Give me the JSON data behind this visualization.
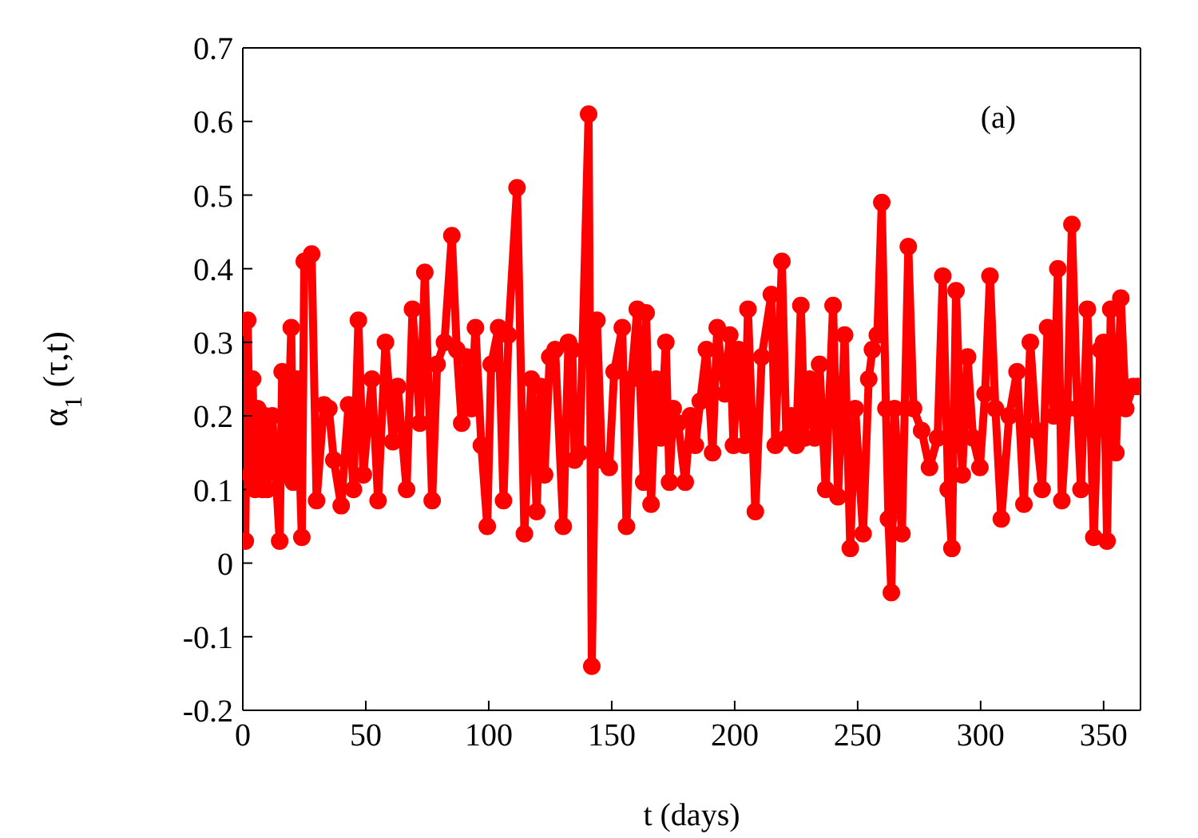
{
  "chart_data": {
    "type": "line",
    "xlabel": "t (days)",
    "ylabel": "α$_{1}$ (τ,t)",
    "annotations": [
      "(a)"
    ],
    "xlim": [
      0,
      365
    ],
    "ylim": [
      -0.2,
      0.7
    ],
    "xticks": [
      0,
      50,
      100,
      150,
      200,
      250,
      300,
      350
    ],
    "yticks": [
      -0.2,
      -0.1,
      0,
      0.1,
      0.2,
      0.3,
      0.4,
      0.5,
      0.6,
      0.7
    ],
    "marker": "circle",
    "line_style": "solid",
    "series": [
      {
        "color": "#ff0000",
        "x": [
          0,
          1,
          2,
          3,
          4,
          5,
          6,
          8,
          9,
          10,
          12,
          15,
          16,
          18,
          19.7,
          20.5,
          22,
          24,
          25,
          28,
          30,
          33,
          35,
          37,
          40,
          43,
          45,
          47,
          49,
          52.5,
          55,
          58,
          61,
          63,
          66.6,
          69,
          72,
          74,
          77,
          79,
          82,
          85,
          87,
          89,
          91,
          93,
          94.6,
          97,
          99.4,
          101,
          104,
          106,
          108,
          111.5,
          114.5,
          117.3,
          119.5,
          121,
          122.7,
          124.8,
          127,
          130.3,
          132.4,
          134,
          134.9,
          137,
          140.6,
          141.9,
          144,
          146,
          149,
          151,
          154.3,
          156,
          158,
          160.4,
          163,
          164,
          166,
          168,
          170,
          172,
          173.5,
          175,
          177,
          179.9,
          182,
          184,
          186,
          188.5,
          191,
          192.9,
          196,
          198,
          199.5,
          201.5,
          204,
          205.4,
          208.4,
          211,
          214.9,
          216.5,
          219.2,
          221,
          223,
          225,
          226.9,
          228.5,
          230.5,
          232.5,
          234.5,
          237,
          240,
          242,
          244.7,
          247,
          249,
          252.2,
          254.5,
          256,
          258,
          259.8,
          261.5,
          262.5,
          263.7,
          265,
          268,
          270.6,
          272.7,
          276,
          279.2,
          282.5,
          284.6,
          286.8,
          288.3,
          290,
          292.5,
          294.7,
          296.9,
          299.7,
          301.8,
          303.8,
          306,
          308.4,
          311.6,
          314.8,
          317.6,
          320.2,
          322.6,
          325,
          327.2,
          329.8,
          331.4,
          333,
          335.3,
          337.1,
          339.3,
          340.8,
          343.4,
          346,
          348.6,
          350,
          351.4,
          352.9,
          355,
          356,
          357,
          359,
          362,
          364
        ],
        "values": [
          0.32,
          0.03,
          0.33,
          0.12,
          0.25,
          0.1,
          0.21,
          0.1,
          0.2,
          0.1,
          0.2,
          0.03,
          0.26,
          0.12,
          0.32,
          0.11,
          0.25,
          0.035,
          0.41,
          0.42,
          0.085,
          0.215,
          0.21,
          0.14,
          0.078,
          0.215,
          0.1,
          0.33,
          0.12,
          0.25,
          0.085,
          0.3,
          0.165,
          0.24,
          0.1,
          0.345,
          0.19,
          0.395,
          0.085,
          0.27,
          0.3,
          0.445,
          0.29,
          0.19,
          0.28,
          0.21,
          0.32,
          0.16,
          0.05,
          0.27,
          0.32,
          0.085,
          0.31,
          0.51,
          0.04,
          0.25,
          0.07,
          0.24,
          0.12,
          0.28,
          0.29,
          0.05,
          0.3,
          0.29,
          0.14,
          0.15,
          0.61,
          -0.14,
          0.33,
          0.14,
          0.13,
          0.26,
          0.32,
          0.05,
          0.25,
          0.345,
          0.11,
          0.34,
          0.08,
          0.25,
          0.17,
          0.3,
          0.11,
          0.21,
          0.19,
          0.11,
          0.2,
          0.16,
          0.22,
          0.29,
          0.15,
          0.32,
          0.23,
          0.31,
          0.16,
          0.29,
          0.16,
          0.345,
          0.07,
          0.28,
          0.365,
          0.16,
          0.41,
          0.17,
          0.2,
          0.16,
          0.35,
          0.17,
          0.25,
          0.17,
          0.27,
          0.1,
          0.35,
          0.09,
          0.31,
          0.02,
          0.21,
          0.04,
          0.25,
          0.29,
          0.31,
          0.49,
          0.21,
          0.06,
          -0.04,
          0.21,
          0.04,
          0.43,
          0.21,
          0.18,
          0.13,
          0.17,
          0.39,
          0.1,
          0.02,
          0.37,
          0.12,
          0.28,
          0.17,
          0.13,
          0.23,
          0.39,
          0.21,
          0.06,
          0.2,
          0.26,
          0.08,
          0.3,
          0.18,
          0.1,
          0.32,
          0.2,
          0.4,
          0.085,
          0.21,
          0.46,
          0.21,
          0.1,
          0.345,
          0.035,
          0.29,
          0.3,
          0.03,
          0.345,
          0.15,
          0.25,
          0.36,
          0.21,
          0.24,
          0.24
        ]
      }
    ]
  }
}
